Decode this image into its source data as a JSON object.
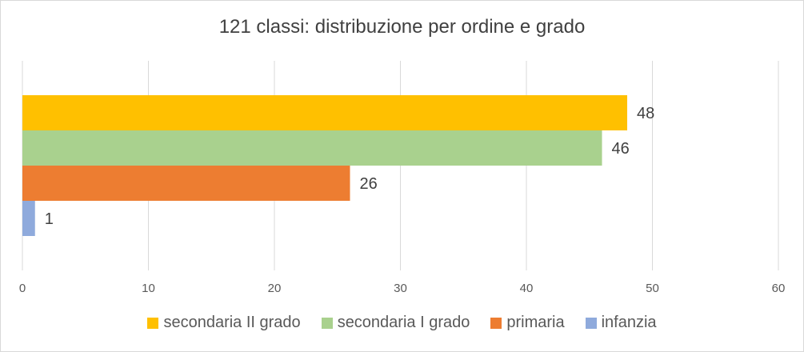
{
  "chart_data": {
    "type": "bar",
    "orientation": "horizontal",
    "title": "121 classi: distribuzione per ordine e grado",
    "xlim": [
      0,
      60
    ],
    "xticks": [
      0,
      10,
      20,
      30,
      40,
      50,
      60
    ],
    "grid": true,
    "legend_position": "bottom",
    "series": [
      {
        "name": "secondaria II grado",
        "value": 48,
        "color": "#FFC000"
      },
      {
        "name": "secondaria I grado",
        "value": 46,
        "color": "#A9D18E"
      },
      {
        "name": "primaria",
        "value": 26,
        "color": "#ED7D31"
      },
      {
        "name": "infanzia",
        "value": 1,
        "color": "#8FAADC"
      }
    ]
  }
}
